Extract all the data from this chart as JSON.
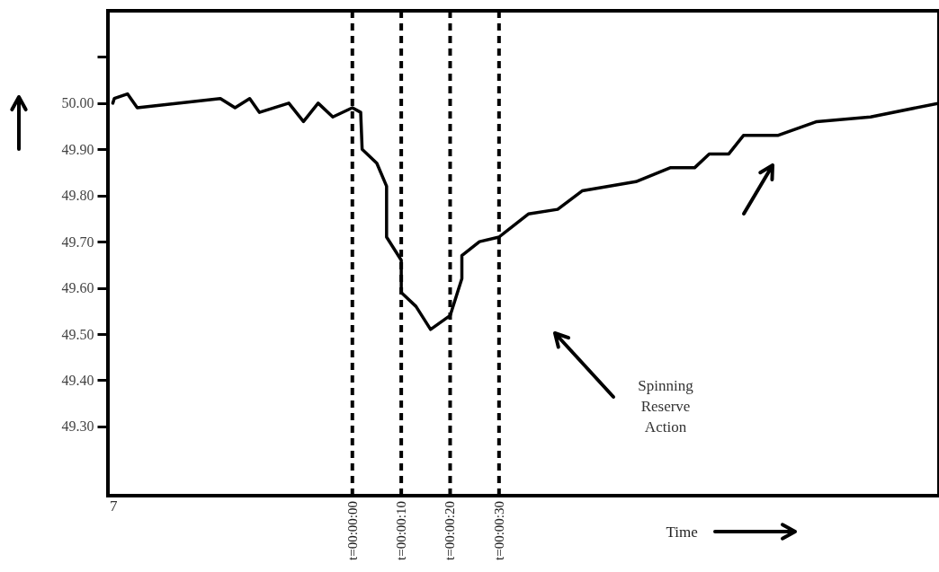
{
  "chart_data": {
    "type": "line",
    "xlabel": "Time",
    "xlim": [
      -50,
      120
    ],
    "ylim": [
      49.15,
      50.2
    ],
    "yticks": [
      {
        "value": 49.3,
        "label": "49.30"
      },
      {
        "value": 49.4,
        "label": "49.40"
      },
      {
        "value": 49.5,
        "label": "49.50"
      },
      {
        "value": 49.6,
        "label": "49.60"
      },
      {
        "value": 49.7,
        "label": "49.70"
      },
      {
        "value": 49.8,
        "label": "49.80"
      },
      {
        "value": 49.9,
        "label": "49.90"
      },
      {
        "value": 50,
        "label": "50.00"
      },
      {
        "value": 50.1,
        "label": null
      }
    ],
    "grid": false,
    "series": [
      {
        "color": "#000000",
        "x": [
          -49,
          -48.7,
          -46,
          -44,
          -27,
          -24,
          -21,
          -19,
          -13,
          -10,
          -7,
          -4,
          0,
          1.7,
          2,
          5,
          7,
          7,
          10,
          10,
          13,
          16,
          20,
          22.4,
          22.4,
          26,
          30,
          36,
          42,
          47,
          58,
          65,
          70,
          73,
          77,
          80,
          87,
          95,
          106,
          120
        ],
        "values": [
          50.0,
          50.01,
          50.02,
          49.99,
          50.01,
          49.99,
          50.01,
          49.98,
          50.0,
          49.96,
          50.0,
          49.97,
          49.99,
          49.98,
          49.9,
          49.87,
          49.82,
          49.71,
          49.66,
          49.59,
          49.56,
          49.51,
          49.54,
          49.62,
          49.67,
          49.7,
          49.71,
          49.76,
          49.77,
          49.81,
          49.83,
          49.86,
          49.86,
          49.89,
          49.89,
          49.93,
          49.93,
          49.96,
          49.97,
          50.0
        ]
      }
    ],
    "ref_lines": [
      {
        "axis": "x",
        "value": 0,
        "label": "t=00:00:00",
        "line_style": "dashed"
      },
      {
        "axis": "x",
        "value": 10,
        "label": "t=00:00:10",
        "line_style": "dashed"
      },
      {
        "axis": "x",
        "value": 20,
        "label": "t=00:00:20",
        "line_style": "dashed"
      },
      {
        "axis": "x",
        "value": 30,
        "label": "t=00:00:30",
        "line_style": "dashed"
      }
    ],
    "annotations": [
      "7",
      "Spinning Reserve Action"
    ]
  }
}
